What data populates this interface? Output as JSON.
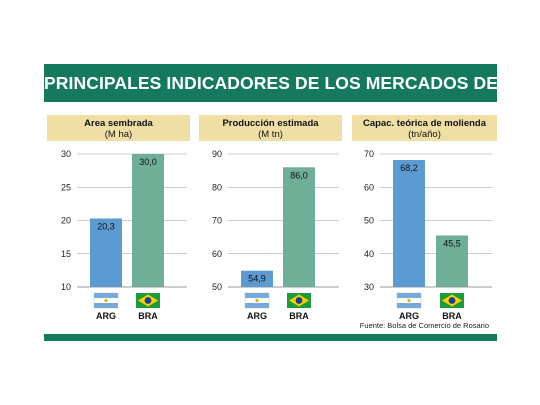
{
  "title": "PRINCIPALES INDICADORES DE LOS MERCADOS DE SOJA",
  "source": "Fuente: Bolsa de Comercio de Rosario",
  "colors": {
    "brand": "#157a5d",
    "header_bg": "#f0dfa4",
    "arg_bar": "#5b9bd1",
    "bra_bar": "#6fae97",
    "flag_ar_blue": "#75aadb",
    "flag_br_green": "#1f9a3a",
    "flag_br_yellow": "#f5d000",
    "flag_br_blue": "#1c3f94"
  },
  "chart_data": [
    {
      "type": "bar",
      "title": "Area sembrada",
      "unit": "(M ha)",
      "categories": [
        "ARG",
        "BRA"
      ],
      "values": [
        20.3,
        30.0
      ],
      "value_labels": [
        "20,3",
        "30,0"
      ],
      "ylim": [
        10,
        30
      ],
      "yticks": [
        10,
        15,
        20,
        25,
        30
      ],
      "ytick_labels": [
        "10",
        "15",
        "20",
        "25",
        "30"
      ],
      "grid": true
    },
    {
      "type": "bar",
      "title": "Producción estimada",
      "unit": "(M tn)",
      "categories": [
        "ARG",
        "BRA"
      ],
      "values": [
        54.9,
        86.0
      ],
      "value_labels": [
        "54,9",
        "86,0"
      ],
      "ylim": [
        50,
        90
      ],
      "yticks": [
        50,
        60,
        70,
        80,
        90
      ],
      "ytick_labels": [
        "50",
        "60",
        "70",
        "80",
        "90"
      ],
      "grid": true
    },
    {
      "type": "bar",
      "title": "Capac. teórica de molienda",
      "unit": "(tn/año)",
      "categories": [
        "ARG",
        "BRA"
      ],
      "values": [
        68.2,
        45.5
      ],
      "value_labels": [
        "68,2",
        "45,5"
      ],
      "ylim": [
        30,
        70
      ],
      "yticks": [
        30,
        40,
        50,
        60,
        70
      ],
      "ytick_labels": [
        "30",
        "40",
        "50",
        "60",
        "70"
      ],
      "grid": true
    }
  ]
}
